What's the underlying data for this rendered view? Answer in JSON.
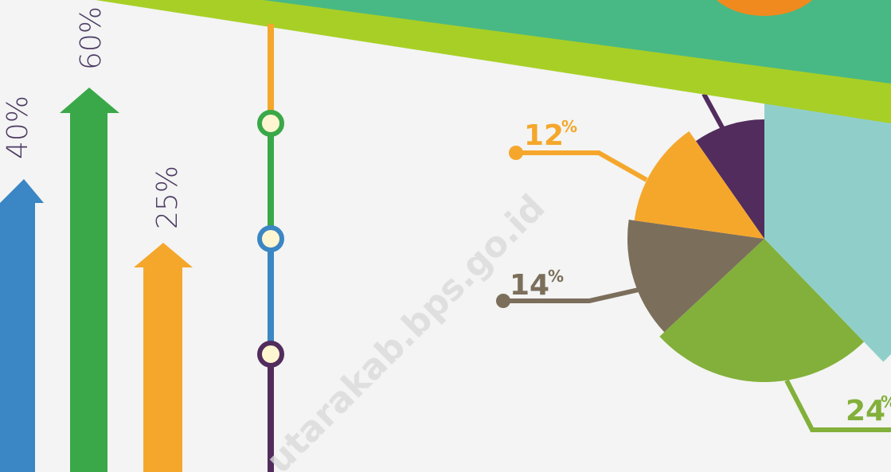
{
  "arrows": [
    {
      "label": "40%"
    },
    {
      "label": "60%"
    },
    {
      "label": "25%"
    }
  ],
  "pie_labels": [
    {
      "number": "12",
      "unit": "%"
    },
    {
      "number": "14",
      "unit": "%"
    },
    {
      "number": "24",
      "unit": "%"
    }
  ],
  "watermark": "utarakab.bps.go.id"
}
